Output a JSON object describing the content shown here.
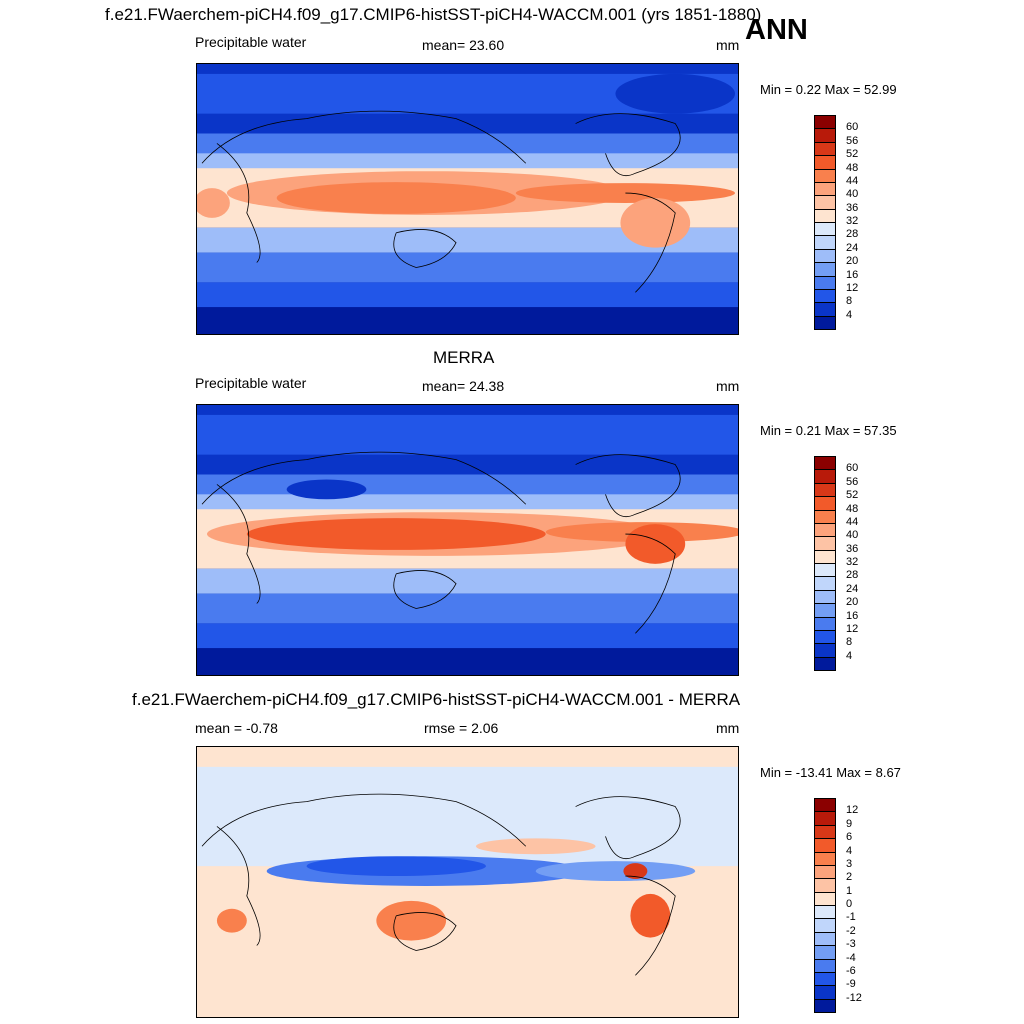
{
  "figure": {
    "title_top": "f.e21.FWaerchem-piCH4.f09_g17.CMIP6-histSST-piCH4-WACCM.001 (yrs 1851-1880)",
    "season": "ANN"
  },
  "panels": [
    {
      "title": "",
      "left_label": "Precipitable water",
      "center_label": "mean=  23.60",
      "units": "mm",
      "minmax": "Min =   0.22 Max =  52.99",
      "colorbar": {
        "labels": [
          "60",
          "56",
          "52",
          "48",
          "44",
          "40",
          "36",
          "32",
          "28",
          "24",
          "20",
          "16",
          "12",
          "8",
          "4"
        ],
        "colors": [
          "#8b0000",
          "#b81a0a",
          "#d83818",
          "#f25a2a",
          "#f9804d",
          "#fca37c",
          "#fdc3a5",
          "#fee4d0",
          "#dce9fb",
          "#c0d6fb",
          "#9ebdf9",
          "#739ef4",
          "#4a7bef",
          "#2256e8",
          "#0a35c8",
          "#001a9c"
        ]
      }
    },
    {
      "title": "MERRA",
      "left_label": "Precipitable water",
      "center_label": "mean=  24.38",
      "units": "mm",
      "minmax": "Min =   0.21 Max =  57.35",
      "colorbar": {
        "labels": [
          "60",
          "56",
          "52",
          "48",
          "44",
          "40",
          "36",
          "32",
          "28",
          "24",
          "20",
          "16",
          "12",
          "8",
          "4"
        ],
        "colors": [
          "#8b0000",
          "#b81a0a",
          "#d83818",
          "#f25a2a",
          "#f9804d",
          "#fca37c",
          "#fdc3a5",
          "#fee4d0",
          "#dce9fb",
          "#c0d6fb",
          "#9ebdf9",
          "#739ef4",
          "#4a7bef",
          "#2256e8",
          "#0a35c8",
          "#001a9c"
        ]
      }
    },
    {
      "title": "f.e21.FWaerchem-piCH4.f09_g17.CMIP6-histSST-piCH4-WACCM.001 - MERRA",
      "left_label": "mean =  -0.78",
      "center_label": "rmse =   2.06",
      "units": "mm",
      "minmax": "Min = -13.41 Max =   8.67",
      "colorbar": {
        "labels": [
          "12",
          "9",
          "6",
          "4",
          "3",
          "2",
          "1",
          "0",
          "-1",
          "-2",
          "-3",
          "-4",
          "-6",
          "-9",
          "-12"
        ],
        "colors": [
          "#8b0000",
          "#b81a0a",
          "#d83818",
          "#f25a2a",
          "#f9804d",
          "#fca37c",
          "#fdc3a5",
          "#fee4d0",
          "#dce9fb",
          "#c0d6fb",
          "#9ebdf9",
          "#739ef4",
          "#4a7bef",
          "#2256e8",
          "#0a35c8",
          "#001a9c"
        ]
      }
    }
  ]
}
